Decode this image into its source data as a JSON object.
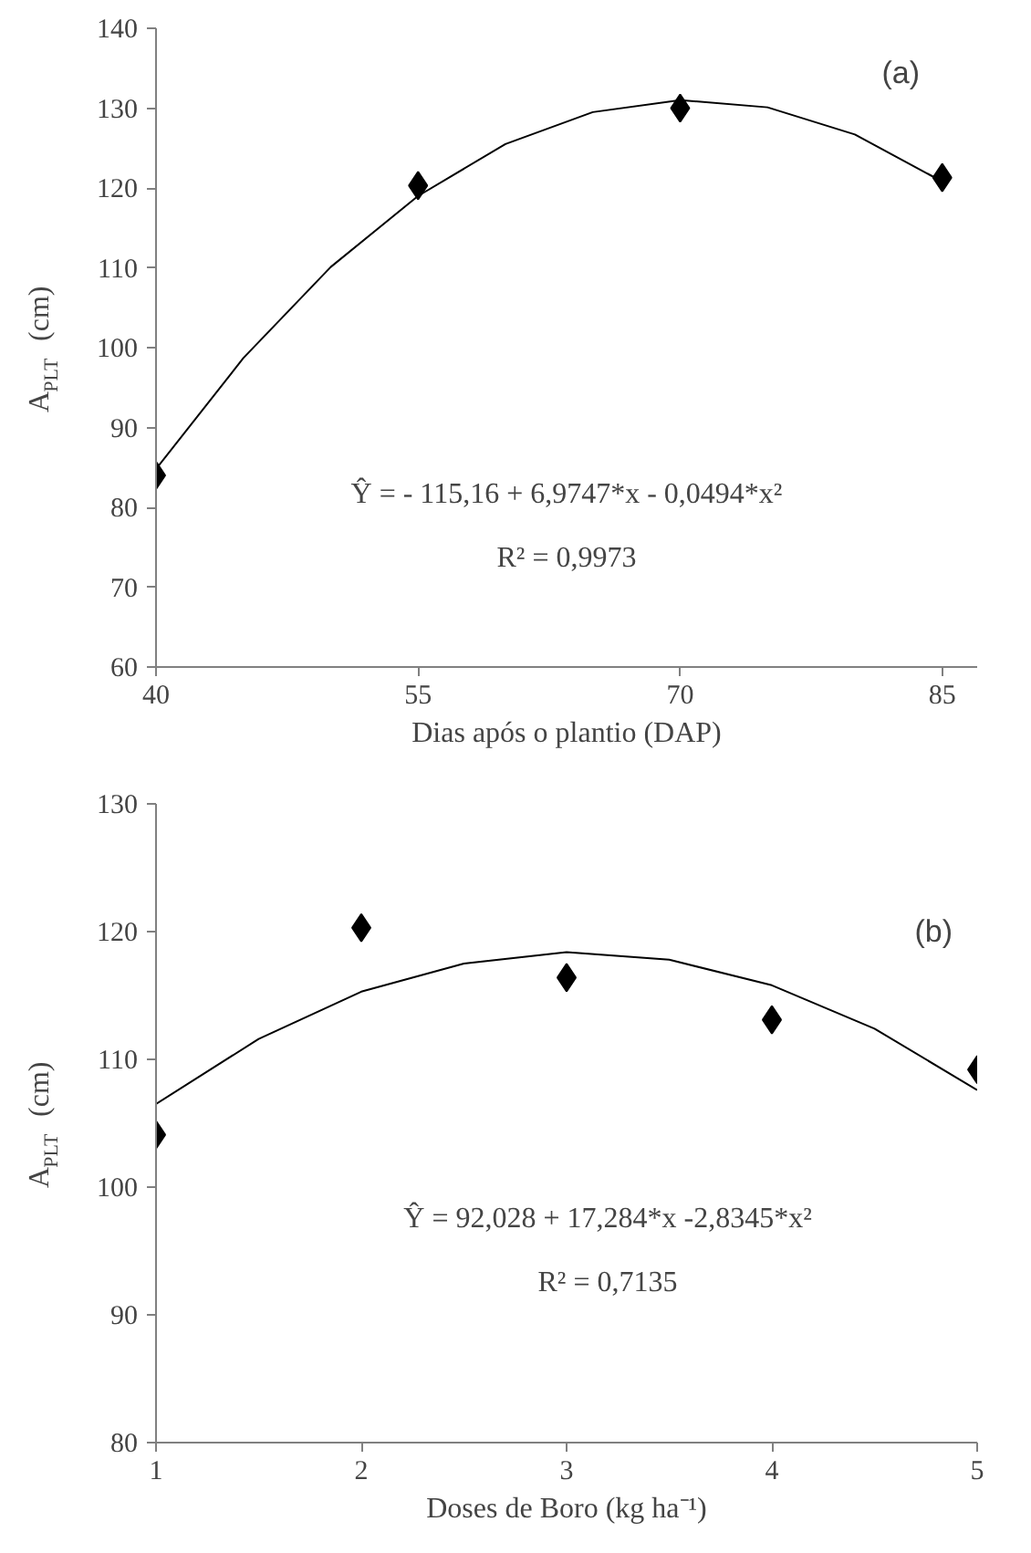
{
  "chart_data": [
    {
      "type": "scatter",
      "xlabel": "Dias após o plantio (DAP)",
      "ylabel": "A$_{PLT}$ (cm)",
      "xlim": [
        40,
        87
      ],
      "ylim": [
        60,
        140
      ],
      "xticks": [
        40,
        55,
        70,
        85
      ],
      "yticks": [
        60,
        70,
        80,
        90,
        100,
        110,
        120,
        130,
        140
      ],
      "grid": false,
      "series": [
        {
          "marker": "diamond",
          "color": "#000000",
          "x": [
            40,
            55,
            70,
            85
          ],
          "values": [
            84,
            120.3,
            130,
            121.3
          ]
        },
        {
          "type": "line",
          "color": "#000000",
          "x": [
            40,
            45,
            50,
            55,
            60,
            65,
            70,
            75,
            80,
            85
          ],
          "values": [
            84.8,
            98.7,
            110.1,
            119.0,
            125.5,
            129.5,
            131.0,
            130.1,
            126.7,
            120.8
          ]
        }
      ],
      "annotations": [
        "(a)",
        "Ŷ = - 115,16 + 6,9747*x - 0,0494*x²",
        "R² = 0,9973"
      ]
    },
    {
      "type": "scatter",
      "xlabel": "Doses de Boro (kg ha⁻¹)",
      "ylabel": "A$_{PLT}$ (cm)",
      "xlim": [
        1,
        5
      ],
      "ylim": [
        80,
        130
      ],
      "xticks": [
        1,
        2,
        3,
        4,
        5
      ],
      "yticks": [
        80,
        90,
        100,
        110,
        120,
        130
      ],
      "grid": false,
      "series": [
        {
          "marker": "diamond",
          "color": "#000000",
          "x": [
            1,
            2,
            3,
            4,
            5
          ],
          "values": [
            104.1,
            120.3,
            116.4,
            113.1,
            109.2
          ]
        },
        {
          "type": "line",
          "color": "#000000",
          "x": [
            1,
            1.5,
            2,
            2.5,
            3,
            3.5,
            4,
            4.5,
            5
          ],
          "values": [
            106.5,
            111.6,
            115.3,
            117.5,
            118.4,
            117.8,
            115.8,
            112.4,
            107.6
          ]
        }
      ],
      "annotations": [
        "(b)",
        "Ŷ = 92,028 + 17,284*x -2,8345*x²",
        "R² = 0,7135"
      ]
    }
  ]
}
